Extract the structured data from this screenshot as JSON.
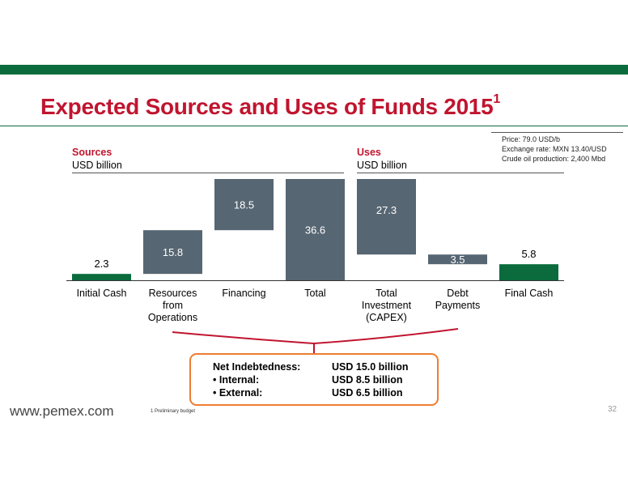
{
  "slide": {
    "title": "Expected Sources and Uses of Funds 2015",
    "title_superscript": "1",
    "assumptions": [
      "Price: 79.0 USD/b",
      "Exchange rate: MXN 13.40/USD",
      "Crude oil production: 2,400 Mbd"
    ],
    "sources_heading": "Sources",
    "sources_unit": "USD billion",
    "uses_heading": "Uses",
    "uses_unit": "USD billion",
    "debt_box": {
      "line1_label": "Net Indebtedness:",
      "line1_value": "USD 15.0 billion",
      "line2_label": "•   Internal:",
      "line2_value": "USD 8.5 billion",
      "line3_label": "•   External:",
      "line3_value": "USD 6.5 billion"
    },
    "footer_url": "www.pemex.com",
    "footnote": "1 Preliminary budget",
    "page_number": "32"
  },
  "colors": {
    "brand_green": "#0b6b3d",
    "title_red": "#c0152f",
    "bar_gray": "#566672",
    "highlight_orange": "#ee7d31"
  },
  "chart_data": {
    "type": "bar",
    "subtype": "waterfall",
    "categories": [
      "Initial Cash",
      "Resources\nfrom\nOperations",
      "Financing",
      "Total",
      "Total\nInvestment\n(CAPEX)",
      "Debt\nPayments",
      "Final Cash"
    ],
    "values": [
      2.3,
      15.8,
      18.5,
      36.6,
      27.3,
      3.5,
      5.8
    ],
    "bar_ranges": [
      [
        0,
        2.3
      ],
      [
        2.3,
        18.1
      ],
      [
        18.1,
        36.6
      ],
      [
        0,
        36.6
      ],
      [
        9.3,
        36.6
      ],
      [
        5.8,
        9.3
      ],
      [
        0,
        5.8
      ]
    ],
    "bar_colors": [
      "#0b6b3d",
      "#566672",
      "#566672",
      "#566672",
      "#566672",
      "#566672",
      "#0b6b3d"
    ],
    "data_labels": [
      "2.3",
      "15.8",
      "18.5",
      "36.6",
      "27.3",
      "3.5",
      "5.8"
    ],
    "label_positions": [
      "above",
      "inside",
      "inside",
      "inside",
      "inside",
      "inside",
      "above"
    ],
    "ylim": [
      0,
      36.6
    ],
    "grid": false,
    "legend": "none"
  }
}
